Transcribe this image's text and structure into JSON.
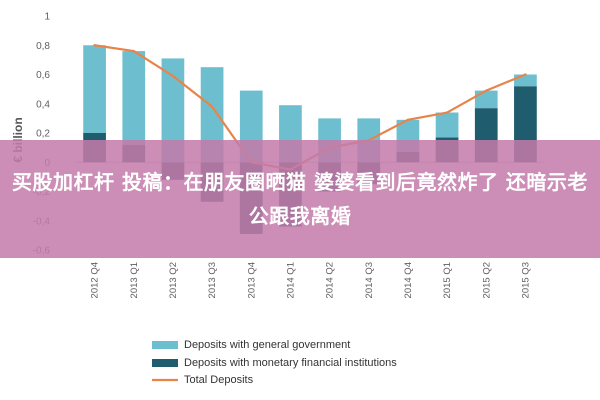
{
  "overlay": {
    "headline": "买股加杠杆 投稿：在朋友圈晒猫 婆婆看到后竟然炸了 还暗示老公跟我离婚"
  },
  "chart_data": {
    "type": "bar",
    "ylabel": "€ billion",
    "ylim": [
      -0.6,
      1.0
    ],
    "yticks": [
      -0.6,
      -0.4,
      -0.2,
      0,
      0.2,
      0.4,
      0.6,
      0.8,
      1
    ],
    "ytick_labels": [
      "-0,6",
      "-0,4",
      "-0,2",
      "0",
      "0,2",
      "0,4",
      "0,6",
      "0,8",
      "1"
    ],
    "categories": [
      "2012 Q4",
      "2013 Q1",
      "2013 Q2",
      "2013 Q3",
      "2013 Q4",
      "2014 Q1",
      "2014 Q2",
      "2014 Q3",
      "2014 Q4",
      "2015 Q1",
      "2015 Q2",
      "2015 Q3"
    ],
    "series": [
      {
        "name": "Deposits with general government",
        "type": "bar",
        "color": "#6dbfcf",
        "values": [
          0.6,
          0.64,
          0.71,
          0.65,
          0.49,
          0.39,
          0.3,
          0.3,
          0.22,
          0.17,
          0.12,
          0.08
        ]
      },
      {
        "name": "Deposits with monetary financial institutions",
        "type": "bar",
        "color": "#1f5d6e",
        "values": [
          0.2,
          0.12,
          -0.12,
          -0.27,
          -0.49,
          -0.44,
          -0.2,
          -0.15,
          0.07,
          0.17,
          0.37,
          0.52
        ]
      },
      {
        "name": "Total Deposits",
        "type": "line",
        "color": "#e8844a",
        "values": [
          0.8,
          0.76,
          0.59,
          0.38,
          0.0,
          -0.05,
          0.1,
          0.15,
          0.29,
          0.34,
          0.49,
          0.6
        ]
      }
    ],
    "legend_position": "bottom",
    "grid": false
  }
}
